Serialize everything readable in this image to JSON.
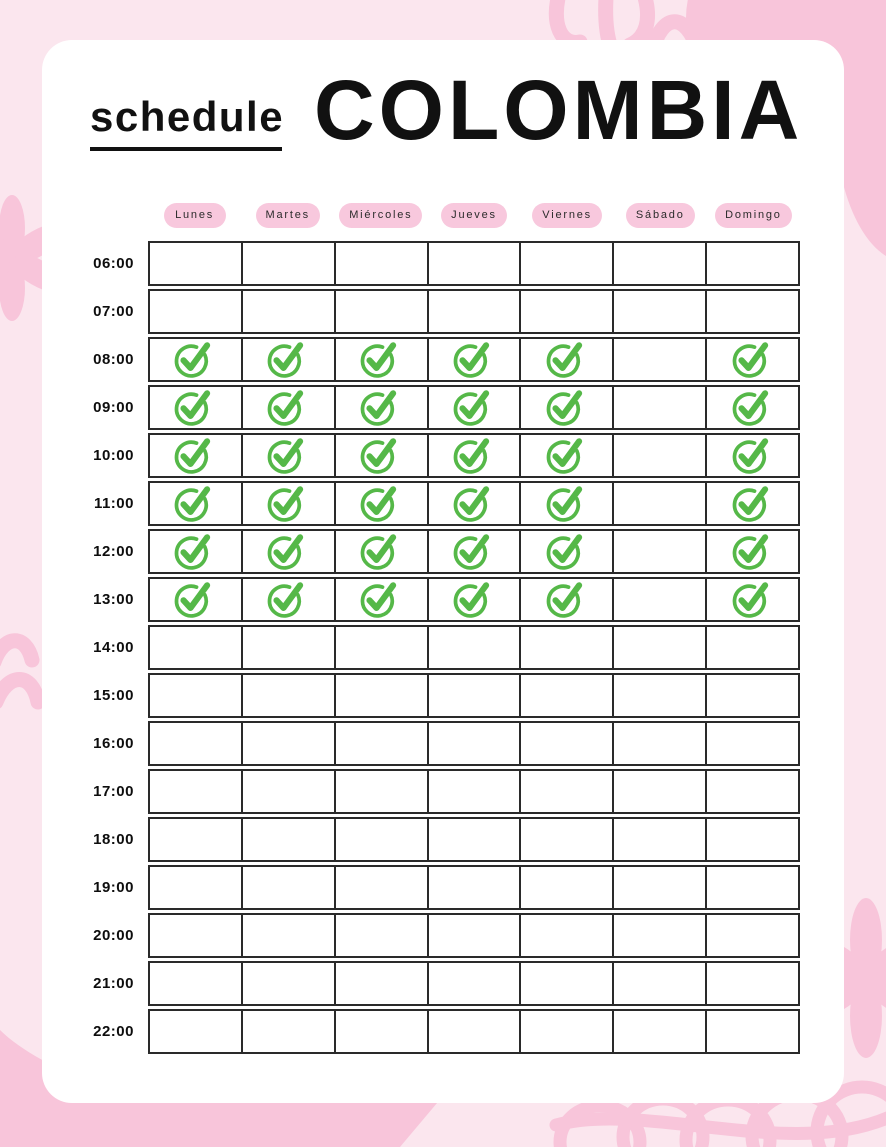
{
  "header": {
    "title_small": "schedule",
    "title_large": "COLOMBIA"
  },
  "days": [
    "Lunes",
    "Martes",
    "Miércoles",
    "Jueves",
    "Viernes",
    "Sábado",
    "Domingo"
  ],
  "grid": {
    "times": [
      "06:00",
      "07:00",
      "08:00",
      "09:00",
      "10:00",
      "11:00",
      "12:00",
      "13:00",
      "14:00",
      "15:00",
      "16:00",
      "17:00",
      "18:00",
      "19:00",
      "20:00",
      "21:00",
      "22:00"
    ],
    "checks": {
      "08:00": [
        1,
        1,
        1,
        1,
        1,
        0,
        1
      ],
      "09:00": [
        1,
        1,
        1,
        1,
        1,
        0,
        1
      ],
      "10:00": [
        1,
        1,
        1,
        1,
        1,
        0,
        1
      ],
      "11:00": [
        1,
        1,
        1,
        1,
        1,
        0,
        1
      ],
      "12:00": [
        1,
        1,
        1,
        1,
        1,
        0,
        1
      ],
      "13:00": [
        1,
        1,
        1,
        1,
        1,
        0,
        1
      ]
    }
  },
  "icons": {
    "check": "check-icon"
  },
  "colors": {
    "page_background": "#fbe6ee",
    "decor_pink": "#f8c5da",
    "pill_pink": "#f8c8dd",
    "card_white": "#ffffff",
    "check_green": "#55b848",
    "grid_border": "#2a2a2a",
    "text_dark": "#111111"
  }
}
